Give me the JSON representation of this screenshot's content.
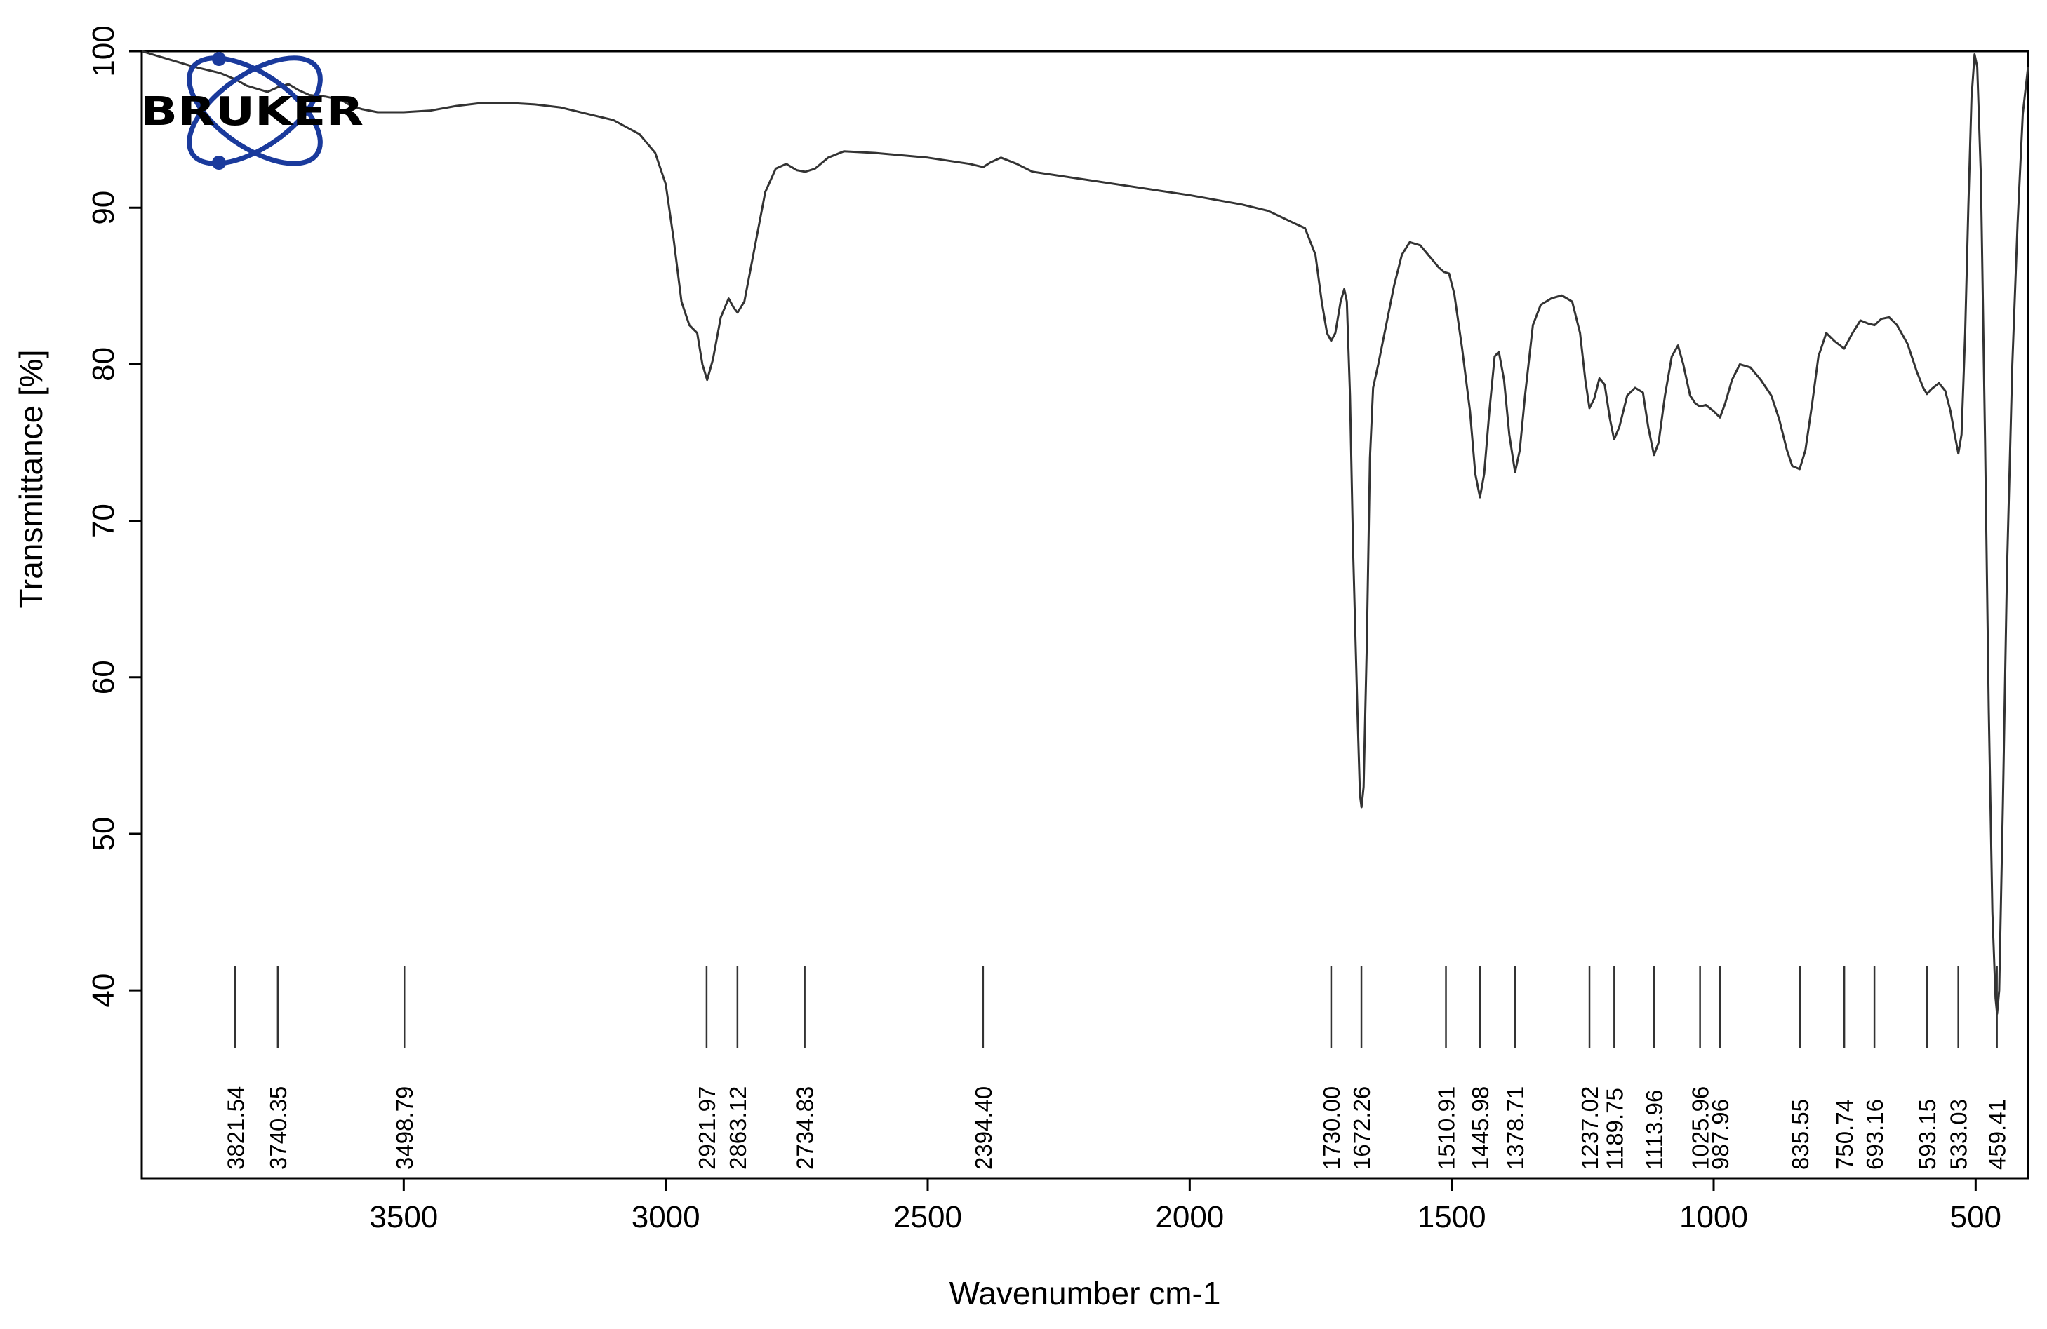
{
  "chart_data": {
    "type": "line",
    "brand": "BRUKER",
    "xlabel": "Wavenumber cm-1",
    "ylabel": "Transmittance [%]",
    "xlim": [
      4000,
      400
    ],
    "ylim": [
      28,
      100
    ],
    "x_ticks": [
      3500,
      3000,
      2500,
      2000,
      1500,
      1000,
      500
    ],
    "y_ticks": [
      40,
      50,
      60,
      70,
      80,
      90,
      100
    ],
    "grid": false,
    "line_color": "#333333",
    "logo_color": "#1a3a9c",
    "peaks": [
      "3821.54",
      "3740.35",
      "3498.79",
      "2921.97",
      "2863.12",
      "2734.83",
      "2394.40",
      "1730.00",
      "1672.26",
      "1510.91",
      "1445.98",
      "1378.71",
      "1237.02",
      "1189.75",
      "1113.96",
      "1025.96",
      "987.96",
      "835.55",
      "750.74",
      "693.16",
      "593.15",
      "533.03",
      "459.41"
    ],
    "points": [
      [
        4000,
        100
      ],
      [
        3950,
        99.5
      ],
      [
        3900,
        99
      ],
      [
        3850,
        98.6
      ],
      [
        3821,
        98.2
      ],
      [
        3800,
        97.8
      ],
      [
        3780,
        97.6
      ],
      [
        3760,
        97.4
      ],
      [
        3740,
        97.7
      ],
      [
        3720,
        97.9
      ],
      [
        3700,
        97.5
      ],
      [
        3680,
        97.2
      ],
      [
        3650,
        97.1
      ],
      [
        3620,
        96.9
      ],
      [
        3600,
        96.5
      ],
      [
        3580,
        96.3
      ],
      [
        3550,
        96.1
      ],
      [
        3500,
        96.1
      ],
      [
        3450,
        96.2
      ],
      [
        3400,
        96.5
      ],
      [
        3350,
        96.7
      ],
      [
        3300,
        96.7
      ],
      [
        3250,
        96.6
      ],
      [
        3200,
        96.4
      ],
      [
        3150,
        96.0
      ],
      [
        3100,
        95.6
      ],
      [
        3050,
        94.7
      ],
      [
        3020,
        93.5
      ],
      [
        3000,
        91.5
      ],
      [
        2985,
        88
      ],
      [
        2970,
        84
      ],
      [
        2955,
        82.5
      ],
      [
        2940,
        82
      ],
      [
        2930,
        80
      ],
      [
        2921,
        79
      ],
      [
        2910,
        80.3
      ],
      [
        2895,
        83
      ],
      [
        2880,
        84.2
      ],
      [
        2870,
        83.6
      ],
      [
        2863,
        83.3
      ],
      [
        2850,
        84
      ],
      [
        2830,
        87.5
      ],
      [
        2810,
        91
      ],
      [
        2790,
        92.5
      ],
      [
        2770,
        92.8
      ],
      [
        2750,
        92.4
      ],
      [
        2734,
        92.3
      ],
      [
        2715,
        92.5
      ],
      [
        2690,
        93.2
      ],
      [
        2660,
        93.6
      ],
      [
        2600,
        93.5
      ],
      [
        2500,
        93.2
      ],
      [
        2420,
        92.8
      ],
      [
        2394,
        92.6
      ],
      [
        2380,
        92.9
      ],
      [
        2360,
        93.2
      ],
      [
        2330,
        92.8
      ],
      [
        2300,
        92.3
      ],
      [
        2200,
        91.8
      ],
      [
        2100,
        91.3
      ],
      [
        2000,
        90.8
      ],
      [
        1900,
        90.2
      ],
      [
        1850,
        89.8
      ],
      [
        1800,
        89
      ],
      [
        1780,
        88.7
      ],
      [
        1760,
        87
      ],
      [
        1748,
        84
      ],
      [
        1738,
        82
      ],
      [
        1730,
        81.5
      ],
      [
        1722,
        82
      ],
      [
        1712,
        84
      ],
      [
        1705,
        84.8
      ],
      [
        1700,
        84
      ],
      [
        1694,
        78
      ],
      [
        1688,
        68
      ],
      [
        1680,
        58
      ],
      [
        1675,
        52.5
      ],
      [
        1672,
        51.7
      ],
      [
        1668,
        53
      ],
      [
        1662,
        62
      ],
      [
        1656,
        74
      ],
      [
        1650,
        78.5
      ],
      [
        1640,
        80
      ],
      [
        1625,
        82.5
      ],
      [
        1610,
        85
      ],
      [
        1595,
        87
      ],
      [
        1580,
        87.8
      ],
      [
        1560,
        87.6
      ],
      [
        1540,
        86.8
      ],
      [
        1525,
        86.2
      ],
      [
        1515,
        85.9
      ],
      [
        1505,
        85.8
      ],
      [
        1495,
        84.5
      ],
      [
        1480,
        81
      ],
      [
        1465,
        77
      ],
      [
        1455,
        73
      ],
      [
        1446,
        71.5
      ],
      [
        1438,
        73
      ],
      [
        1428,
        77
      ],
      [
        1418,
        80.5
      ],
      [
        1410,
        80.8
      ],
      [
        1400,
        79
      ],
      [
        1390,
        75.5
      ],
      [
        1379,
        73.1
      ],
      [
        1370,
        74.5
      ],
      [
        1360,
        78
      ],
      [
        1345,
        82.5
      ],
      [
        1330,
        83.8
      ],
      [
        1310,
        84.2
      ],
      [
        1290,
        84.4
      ],
      [
        1270,
        84
      ],
      [
        1255,
        82
      ],
      [
        1245,
        79
      ],
      [
        1237,
        77.2
      ],
      [
        1228,
        77.8
      ],
      [
        1218,
        79.1
      ],
      [
        1208,
        78.7
      ],
      [
        1198,
        76.5
      ],
      [
        1190,
        75.2
      ],
      [
        1180,
        76
      ],
      [
        1165,
        78
      ],
      [
        1150,
        78.5
      ],
      [
        1135,
        78.2
      ],
      [
        1125,
        76
      ],
      [
        1114,
        74.2
      ],
      [
        1105,
        75
      ],
      [
        1093,
        78
      ],
      [
        1080,
        80.5
      ],
      [
        1068,
        81.2
      ],
      [
        1058,
        80
      ],
      [
        1045,
        78
      ],
      [
        1035,
        77.5
      ],
      [
        1026,
        77.3
      ],
      [
        1015,
        77.4
      ],
      [
        1000,
        77
      ],
      [
        988,
        76.6
      ],
      [
        978,
        77.5
      ],
      [
        965,
        79
      ],
      [
        950,
        80
      ],
      [
        930,
        79.8
      ],
      [
        910,
        79
      ],
      [
        890,
        78
      ],
      [
        875,
        76.5
      ],
      [
        860,
        74.5
      ],
      [
        850,
        73.5
      ],
      [
        836,
        73.3
      ],
      [
        825,
        74.5
      ],
      [
        812,
        77.5
      ],
      [
        800,
        80.5
      ],
      [
        785,
        82
      ],
      [
        770,
        81.5
      ],
      [
        751,
        81
      ],
      [
        735,
        82
      ],
      [
        720,
        82.8
      ],
      [
        705,
        82.6
      ],
      [
        693,
        82.5
      ],
      [
        680,
        82.9
      ],
      [
        665,
        83
      ],
      [
        650,
        82.5
      ],
      [
        630,
        81.3
      ],
      [
        612,
        79.5
      ],
      [
        600,
        78.5
      ],
      [
        593,
        78.1
      ],
      [
        585,
        78.4
      ],
      [
        570,
        78.8
      ],
      [
        558,
        78.3
      ],
      [
        548,
        77
      ],
      [
        540,
        75.5
      ],
      [
        533,
        74.3
      ],
      [
        527,
        75.5
      ],
      [
        520,
        82
      ],
      [
        514,
        90
      ],
      [
        508,
        97
      ],
      [
        502,
        99.8
      ],
      [
        497,
        99
      ],
      [
        490,
        92
      ],
      [
        482,
        75
      ],
      [
        475,
        58
      ],
      [
        468,
        45
      ],
      [
        462,
        39.5
      ],
      [
        459,
        38.5
      ],
      [
        455,
        40
      ],
      [
        448,
        52
      ],
      [
        440,
        67
      ],
      [
        430,
        80
      ],
      [
        420,
        89
      ],
      [
        410,
        96
      ],
      [
        400,
        99
      ]
    ]
  }
}
